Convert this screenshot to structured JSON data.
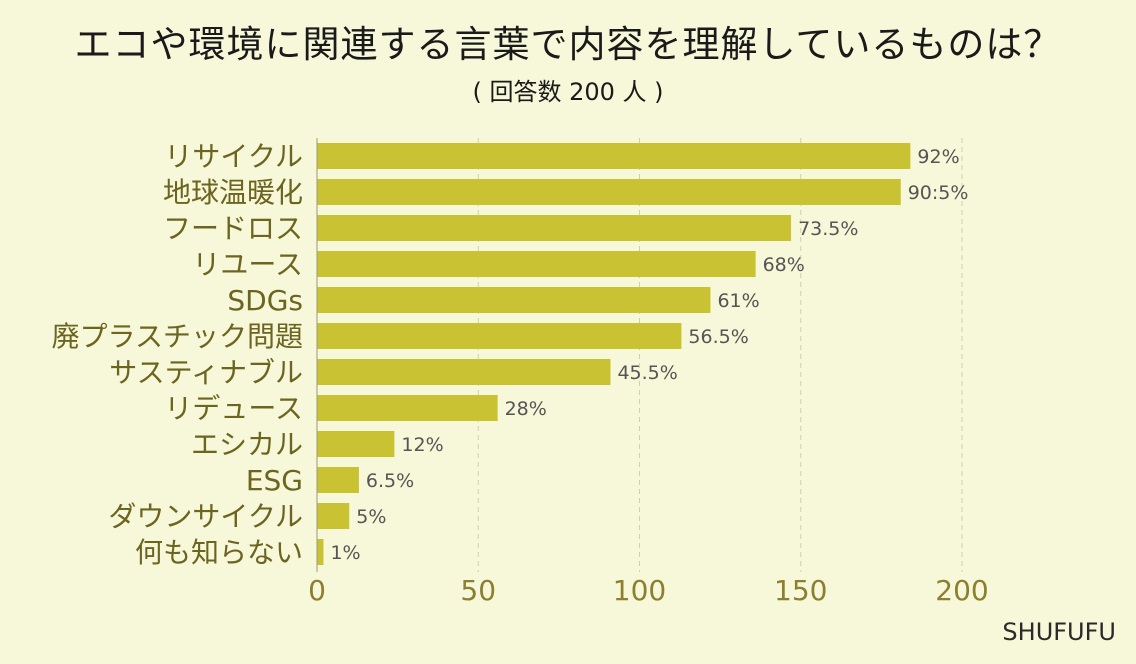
{
  "chart_data": {
    "type": "bar",
    "orientation": "horizontal",
    "title": "エコや環境に関連する言葉で内容を理解しているものは？",
    "subtitle": "( 回答数 200 人 )",
    "categories": [
      "リサイクル",
      "地球温暖化",
      "フードロス",
      "リユース",
      "SDGs",
      "廃プラスチック問題",
      "サスティナブル",
      "リデュース",
      "エシカル",
      "ESG",
      "ダウンサイクル",
      "何も知らない"
    ],
    "values": [
      184,
      181,
      147,
      136,
      122,
      113,
      91,
      56,
      24,
      13,
      10,
      2
    ],
    "value_labels": [
      "92%",
      "90:5%",
      "73.5%",
      "68%",
      "61%",
      "56.5%",
      "45.5%",
      "28%",
      "12%",
      "6.5%",
      "5%",
      "1%"
    ],
    "xlim": [
      0,
      200
    ],
    "xticks": [
      "0",
      "50",
      "100",
      "150",
      "200"
    ],
    "grid": true,
    "colors": {
      "bar": "#c9c232",
      "category_text": "#6b6520",
      "tick_text": "#8a8030",
      "value_text": "#555555",
      "grid": "#cfcfb8"
    }
  },
  "watermark": "SHUFUFU"
}
